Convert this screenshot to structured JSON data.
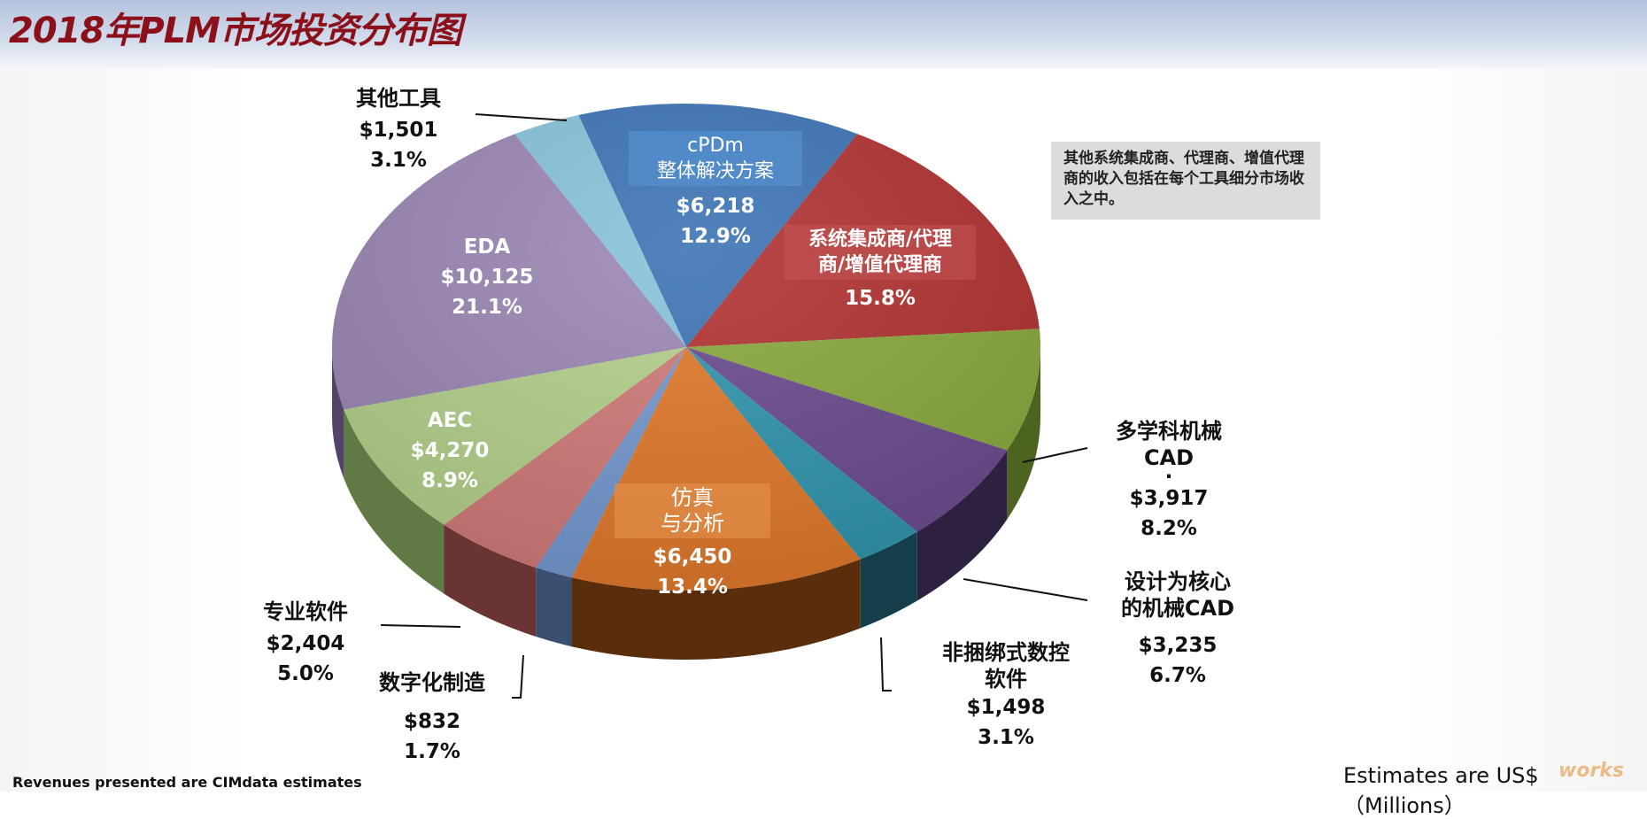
{
  "header": {
    "title": "2018年PLM市场投资分布图"
  },
  "note": {
    "text": "其他系统集成商、代理商、增值代理商的收入包括在每个工具细分市场收入之中。"
  },
  "footer": {
    "left": "Revenues presented are CIMdata estimates",
    "right": "Estimates are US$（Millions）",
    "watermark": "works"
  },
  "labels": {
    "cpdm": {
      "name1": "cPDm",
      "name2": "整体解决方案",
      "value": "$6,218",
      "pct": "12.9%"
    },
    "si": {
      "name1": "系统集成商/代理",
      "name2": "商/增值代理商",
      "pct": "15.8%"
    },
    "mcad": {
      "name1": "多学科机械",
      "name2": "CAD",
      "dot": "·",
      "value": "$3,917",
      "pct": "8.2%"
    },
    "dcad": {
      "name1": "设计为核心",
      "name2": "的机械CAD",
      "value": "$3,235",
      "pct": "6.7%"
    },
    "nc": {
      "name1": "非捆绑式数控",
      "name2": "软件",
      "value": "$1,498",
      "pct": "3.1%"
    },
    "sim": {
      "name1": "仿真",
      "name2": "与分析",
      "value": "$6,450",
      "pct": "13.4%"
    },
    "dm": {
      "name": "数字化制造",
      "value": "$832",
      "pct": "1.7%"
    },
    "spec": {
      "name": "专业软件",
      "value": "$2,404",
      "pct": "5.0%"
    },
    "aec": {
      "name": "AEC",
      "value": "$4,270",
      "pct": "8.9%"
    },
    "eda": {
      "name": "EDA",
      "value": "$10,125",
      "pct": "21.1%"
    },
    "other": {
      "name": "其他工具",
      "value": "$1,501",
      "pct": "3.1%"
    }
  },
  "chart_data": {
    "type": "pie",
    "title": "2018年PLM市场投资分布图",
    "unit": "US$ Millions",
    "style": "3d-exploded-perspective",
    "categories": [
      "cPDm 整体解决方案",
      "系统集成商/代理商/增值代理商",
      "多学科机械CAD",
      "设计为核心的机械CAD",
      "非捆绑式数控软件",
      "仿真与分析",
      "数字化制造",
      "专业软件",
      "AEC",
      "EDA",
      "其他工具"
    ],
    "values": [
      6218,
      7580,
      3917,
      3235,
      1498,
      6450,
      832,
      2404,
      4270,
      10125,
      1501
    ],
    "value_labels": [
      "$6,218",
      "",
      "$3,917",
      "$3,235",
      "$1,498",
      "$6,450",
      "$832",
      "$2,404",
      "$4,270",
      "$10,125",
      "$1,501"
    ],
    "percentages": [
      12.9,
      15.8,
      8.2,
      6.7,
      3.1,
      13.4,
      1.7,
      5.0,
      8.9,
      21.1,
      3.1
    ],
    "colors": [
      "#3a72b4",
      "#b0302f",
      "#88a83c",
      "#6a4a8e",
      "#2f95ad",
      "#e0782a",
      "#7298cf",
      "#cf7a78",
      "#b3d08a",
      "#9a86b3",
      "#86c3d9"
    ],
    "side_colors": [
      "#1f3e66",
      "#5c1616",
      "#4d6420",
      "#2e2040",
      "#133e4a",
      "#5a2d0c",
      "#3a4f70",
      "#6b3434",
      "#617a45",
      "#524468",
      "#4b7f92"
    ],
    "annotations": [
      "其他系统集成商、代理商、增值代理商的收入包括在每个工具细分市场收入之中。",
      "Revenues presented are CIMdata estimates",
      "Estimates are US$（Millions）"
    ]
  }
}
